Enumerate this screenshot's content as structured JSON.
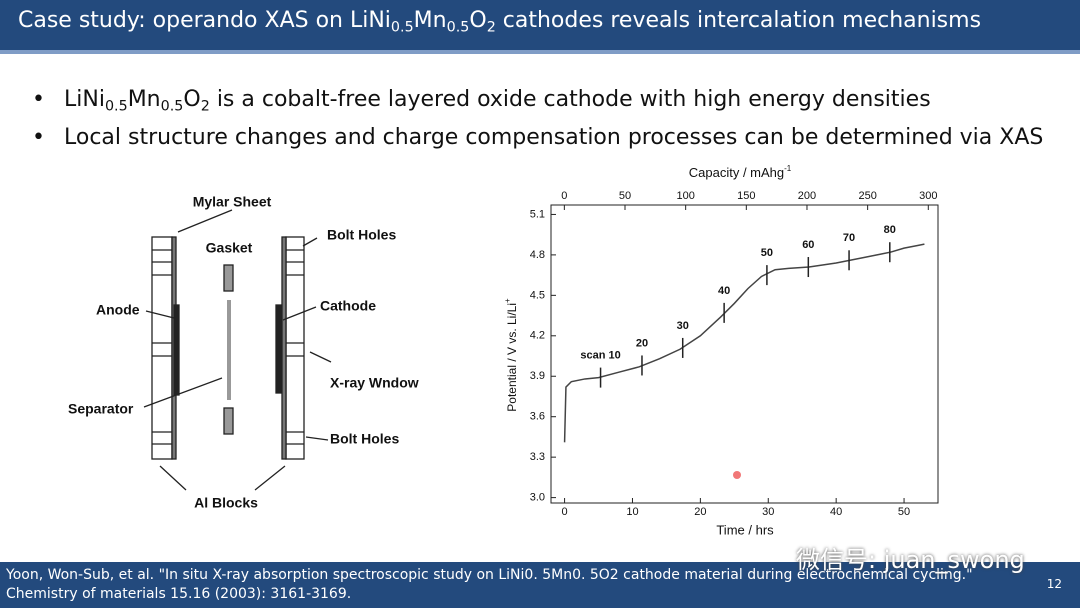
{
  "header": {
    "title": [
      "Case study: operando XAS on LiNi",
      "0.5",
      "Mn",
      "0.5",
      "O",
      "2",
      " cathodes reveals intercalation mechanisms"
    ]
  },
  "bullets": [
    [
      "LiNi",
      "0.5",
      "Mn",
      "0.5",
      "O",
      "2",
      " is a cobalt-free layered oxide cathode with high energy densities"
    ],
    [
      "Local structure changes and charge compensation processes can be determined via XAS"
    ]
  ],
  "diagram": {
    "labels": [
      "Mylar Sheet",
      "Gasket",
      "Bolt Holes",
      "Anode",
      "Cathode",
      "X-ray Wndow",
      "Separator",
      "Bolt Holes",
      "Al Blocks"
    ]
  },
  "chart_data": {
    "type": "line",
    "x_label": "Time / hrs",
    "x2_label": [
      "Capacity / mAhg",
      "-1"
    ],
    "y_label": [
      "Potential / V vs. Li/Li",
      "+"
    ],
    "x": [
      0,
      0.2,
      1,
      3,
      5,
      8,
      11,
      14,
      17,
      20,
      23,
      25,
      27,
      29,
      31,
      33,
      36,
      40,
      44,
      48,
      50,
      52,
      53
    ],
    "values": [
      3.41,
      3.82,
      3.86,
      3.88,
      3.89,
      3.93,
      3.97,
      4.03,
      4.1,
      4.2,
      4.34,
      4.44,
      4.55,
      4.64,
      4.69,
      4.7,
      4.71,
      4.74,
      4.78,
      4.82,
      4.85,
      4.87,
      4.88
    ],
    "color": "#444444",
    "xlim": [
      -2,
      55
    ],
    "xticks": [
      0,
      10,
      20,
      30,
      40,
      50
    ],
    "x2lim": [
      -11,
      308
    ],
    "x2ticks": [
      0,
      50,
      100,
      150,
      200,
      250,
      300
    ],
    "ylim": [
      2.96,
      5.17
    ],
    "yticks": [
      {
        "value": 3,
        "label": "3.0"
      },
      3.3,
      3.6,
      3.9,
      4.2,
      4.5,
      4.8,
      5.1
    ],
    "annotations": [
      {
        "text": "scan 10",
        "x": 5.3,
        "y": 3.89
      },
      {
        "text": "20",
        "x": 11.4,
        "y": 3.98
      },
      {
        "text": "30",
        "x": 17.4,
        "y": 4.11
      },
      {
        "text": "40",
        "x": 23.5,
        "y": 4.37
      },
      {
        "text": "50",
        "x": 29.8,
        "y": 4.65
      },
      {
        "text": "60",
        "x": 35.9,
        "y": 4.71
      },
      {
        "text": "70",
        "x": 41.9,
        "y": 4.76
      },
      {
        "text": "80",
        "x": 47.9,
        "y": 4.82
      }
    ]
  },
  "footer": {
    "citation": [
      "Yoon, Won-Sub, et al. \"In situ X-ray absorption spectroscopic study on LiNi0. 5Mn0. 5O2 cathode material during electrochemical cycling.\"",
      "Chemistry of materials 15.16 (2003): 3161-3169."
    ],
    "page": 12,
    "watermark": "微信号: juan_swong"
  }
}
